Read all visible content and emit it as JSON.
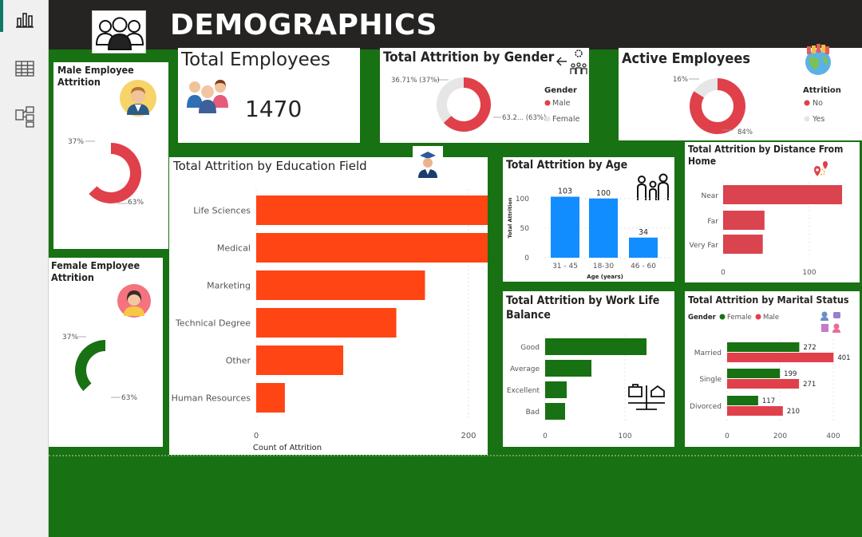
{
  "page": {
    "title": "DEMOGRAPHICS"
  },
  "colors": {
    "header": "#252423",
    "background": "#187112",
    "red": "#e0404a",
    "orange": "#ff4514",
    "blue": "#118dff",
    "green": "#187112",
    "grey": "#e6e6e6"
  },
  "nav": [
    {
      "name": "report-view-icon"
    },
    {
      "name": "table-view-icon"
    },
    {
      "name": "model-view-icon"
    }
  ],
  "male_attrition": {
    "title_line1": "Male Employee",
    "title_line2": "Attrition",
    "label_small": "37%",
    "label_large": "63%",
    "fraction": 0.63
  },
  "female_attrition": {
    "title_line1": "Female Employee",
    "title_line2": "Attrition",
    "label_small": "37%",
    "label_large": "63%",
    "fraction": 0.37
  },
  "total_employees": {
    "title": "Total Employees",
    "value": "1470"
  },
  "attrition_by_gender": {
    "title": "Total Attrition by Gender",
    "label_female": "36.71% (37%)",
    "label_male": "63.2... (63%)",
    "legend_title": "Gender",
    "legend": [
      "Male",
      "Female"
    ],
    "chart_data": {
      "type": "pie",
      "categories": [
        "Male",
        "Female"
      ],
      "values": [
        63.29,
        36.71
      ]
    }
  },
  "active_employees": {
    "title": "Active Employees",
    "label_yes": "16%",
    "label_no": "84%",
    "legend_title": "Attrition",
    "legend": [
      "No",
      "Yes"
    ],
    "chart_data": {
      "type": "pie",
      "categories": [
        "No",
        "Yes"
      ],
      "values": [
        84,
        16
      ]
    }
  },
  "education_field": {
    "title": "Total Attrition by Education Field",
    "xlabel": "Count of Attrition",
    "ticks": [
      "0",
      "200",
      "400",
      "600"
    ],
    "chart_data": {
      "type": "bar",
      "orientation": "horizontal",
      "categories": [
        "Life Sciences",
        "Medical",
        "Marketing",
        "Technical Degree",
        "Other",
        "Human Resources"
      ],
      "values": [
        606,
        464,
        159,
        132,
        82,
        27
      ],
      "xlim": [
        0,
        700
      ]
    }
  },
  "age": {
    "title": "Total Attrition by Age",
    "ylabel": "Total Attrition",
    "xlabel": "Age (years)",
    "ticks": [
      "0",
      "50",
      "100"
    ],
    "chart_data": {
      "type": "bar",
      "categories": [
        "31 - 45",
        "18-30",
        "46 - 60"
      ],
      "values": [
        103,
        100,
        34
      ],
      "value_labels": [
        "103",
        "100",
        "34"
      ],
      "ylim": [
        0,
        120
      ]
    }
  },
  "distance": {
    "title_line1": "Total Attrition by Distance From",
    "title_line2": "Home",
    "ticks": [
      "0",
      "100"
    ],
    "chart_data": {
      "type": "bar",
      "orientation": "horizontal",
      "categories": [
        "Near",
        "Far",
        "Very Far"
      ],
      "values": [
        138,
        48,
        46
      ],
      "xlim": [
        0,
        145
      ]
    }
  },
  "work_life": {
    "title_line1": "Total Attrition by Work Life",
    "title_line2": "Balance",
    "ticks": [
      "0",
      "100"
    ],
    "chart_data": {
      "type": "bar",
      "orientation": "horizontal",
      "categories": [
        "Good",
        "Average",
        "Excellent",
        "Bad"
      ],
      "values": [
        127,
        58,
        27,
        25
      ],
      "xlim": [
        0,
        160
      ]
    }
  },
  "marital": {
    "title": "Total Attrition by Marital Status",
    "legend_title": "Gender",
    "legend": [
      "Female",
      "Male"
    ],
    "ticks": [
      "0",
      "200",
      "400"
    ],
    "chart_data": {
      "type": "bar",
      "orientation": "horizontal",
      "categories": [
        "Married",
        "Single",
        "Divorced"
      ],
      "series": [
        {
          "name": "Female",
          "values": [
            272,
            199,
            117
          ],
          "labels": [
            "272",
            "199",
            "117"
          ]
        },
        {
          "name": "Male",
          "values": [
            401,
            271,
            210
          ],
          "labels": [
            "401",
            "271",
            "210"
          ]
        }
      ],
      "xlim": [
        0,
        470
      ]
    }
  }
}
